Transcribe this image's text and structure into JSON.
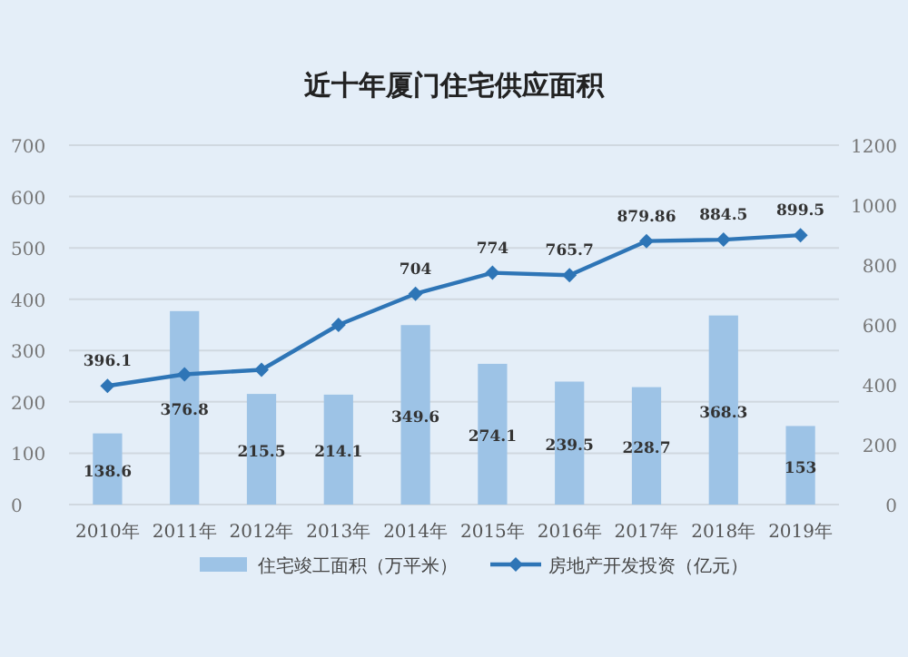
{
  "chart_data": {
    "type": "bar",
    "title": "近十年厦门住宅供应面积",
    "categories": [
      "2010年",
      "2011年",
      "2012年",
      "2013年",
      "2014年",
      "2015年",
      "2016年",
      "2017年",
      "2018年",
      "2019年"
    ],
    "series": [
      {
        "name": "住宅竣工面积（万平米）",
        "color": "#9dc3e6",
        "values": [
          138.6,
          376.8,
          215.5,
          214.1,
          349.6,
          274.1,
          239.5,
          228.7,
          368.3,
          153
        ],
        "value_labels": [
          "138.6",
          "376.8",
          "215.5",
          "214.1",
          "349.6",
          "274.1",
          "239.5",
          "228.7",
          "368.3",
          "153"
        ]
      },
      {
        "name": "房地产开发投资（亿元）",
        "type": "line",
        "axis": "y2",
        "color": "#2e75b6",
        "marker": "diamond",
        "values": [
          396.1,
          435,
          450,
          600,
          704,
          774,
          765.7,
          879.86,
          884.5,
          899.5
        ],
        "value_labels": [
          "396.1",
          null,
          null,
          null,
          "704",
          "774",
          "765.7",
          "879.86",
          "884.5",
          "899.5"
        ]
      }
    ],
    "ylim": [
      0,
      700
    ],
    "yticks": [
      0,
      100,
      200,
      300,
      400,
      500,
      600,
      700
    ],
    "y2lim": [
      0,
      1200
    ],
    "y2ticks": [
      0,
      200,
      400,
      600,
      800,
      1000,
      1200
    ],
    "grid": "y",
    "legend": "bottom"
  }
}
